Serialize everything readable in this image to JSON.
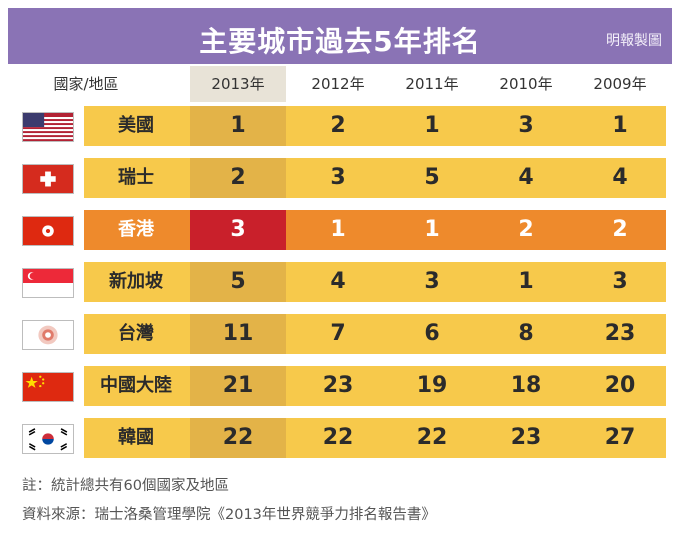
{
  "title": "主要城市過去5年排名",
  "credit": "明報製圖",
  "columns": {
    "region": "國家/地區",
    "years": [
      "2013年",
      "2012年",
      "2011年",
      "2010年",
      "2009年"
    ]
  },
  "colors": {
    "title_bg": "#8a73b5",
    "row_bg": "#f7c94b",
    "highlight_col": "#e3b348",
    "hk_row": "#ee8a2c",
    "hk_highlight": "#c9202b"
  },
  "chart_data": {
    "type": "table",
    "title": "主要城市過去5年排名",
    "categories": [
      "2013年",
      "2012年",
      "2011年",
      "2010年",
      "2009年"
    ],
    "rows": [
      {
        "region": "美國",
        "flag": "usa-flag-icon",
        "values": [
          1,
          2,
          1,
          3,
          1
        ]
      },
      {
        "region": "瑞士",
        "flag": "switzerland-flag-icon",
        "values": [
          2,
          3,
          5,
          4,
          4
        ]
      },
      {
        "region": "香港",
        "flag": "hong-kong-flag-icon",
        "values": [
          3,
          1,
          1,
          2,
          2
        ]
      },
      {
        "region": "新加坡",
        "flag": "singapore-flag-icon",
        "values": [
          5,
          4,
          3,
          1,
          3
        ]
      },
      {
        "region": "台灣",
        "flag": "taiwan-emblem-icon",
        "values": [
          11,
          7,
          6,
          8,
          23
        ]
      },
      {
        "region": "中國大陸",
        "flag": "china-flag-icon",
        "values": [
          21,
          23,
          19,
          18,
          20
        ]
      },
      {
        "region": "韓國",
        "flag": "south-korea-flag-icon",
        "values": [
          22,
          22,
          22,
          23,
          27
        ]
      }
    ]
  },
  "notes": {
    "line1": "註：統計總共有60個國家及地區",
    "line2": "資料來源：瑞士洛桑管理學院《2013年世界競爭力排名報告書》"
  }
}
